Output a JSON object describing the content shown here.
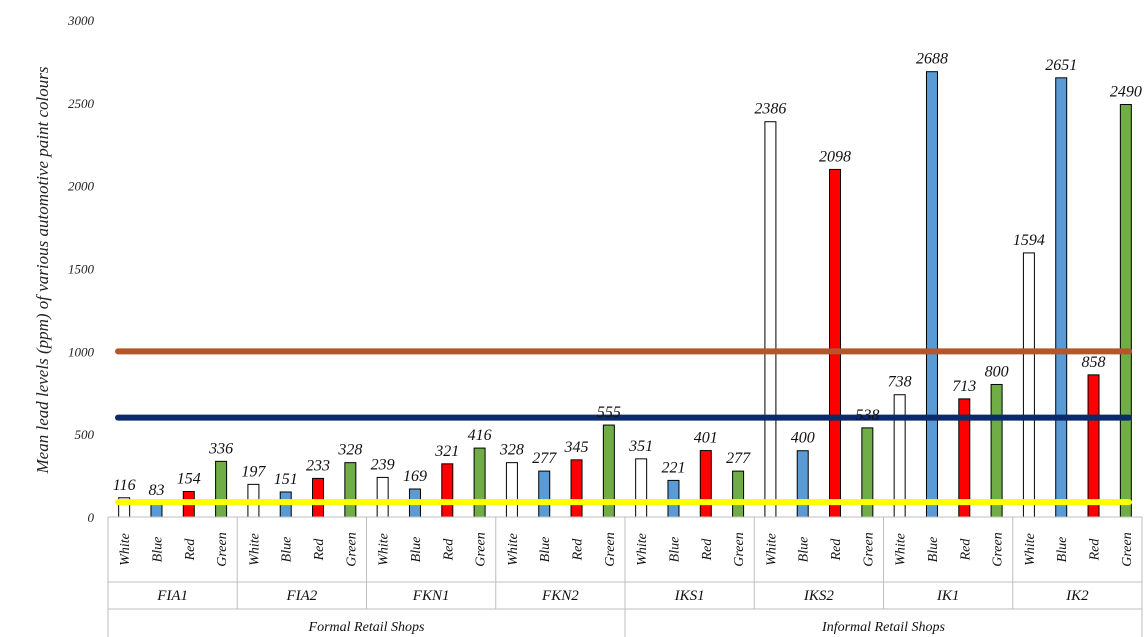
{
  "chart_data": {
    "type": "bar",
    "ylabel": "Mean lead levels (ppm) of various automotive paint colours",
    "ylim": [
      0,
      3000
    ],
    "yticks": [
      0,
      500,
      1000,
      1500,
      2000,
      2500,
      3000
    ],
    "grid": false,
    "legend": "none",
    "colour_labels": [
      "White",
      "Blue",
      "Red",
      "Green"
    ],
    "colour_fills": [
      "#ffffff",
      "#5b9bd5",
      "#ff0000",
      "#70ad47"
    ],
    "shops": [
      "FIA1",
      "FIA2",
      "FKN1",
      "FKN2",
      "IKS1",
      "IKS2",
      "IK1",
      "IK2"
    ],
    "groups": [
      {
        "label": "Formal Retail Shops",
        "shops": [
          "FIA1",
          "FIA2",
          "FKN1",
          "FKN2"
        ]
      },
      {
        "label": "Informal Retail Shops",
        "shops": [
          "IKS1",
          "IKS2",
          "IK1",
          "IK2"
        ]
      }
    ],
    "values": [
      [
        116,
        83,
        154,
        336
      ],
      [
        197,
        151,
        233,
        328
      ],
      [
        239,
        169,
        321,
        416
      ],
      [
        328,
        277,
        345,
        555
      ],
      [
        351,
        221,
        401,
        277
      ],
      [
        2386,
        400,
        2098,
        538
      ],
      [
        738,
        2688,
        713,
        800
      ],
      [
        1594,
        2651,
        858,
        2490
      ]
    ],
    "reference_lines": [
      {
        "value": 1000,
        "color": "#b5562a"
      },
      {
        "value": 600,
        "color": "#0b2a6b"
      },
      {
        "value": 90,
        "color": "#ffff00"
      }
    ]
  }
}
